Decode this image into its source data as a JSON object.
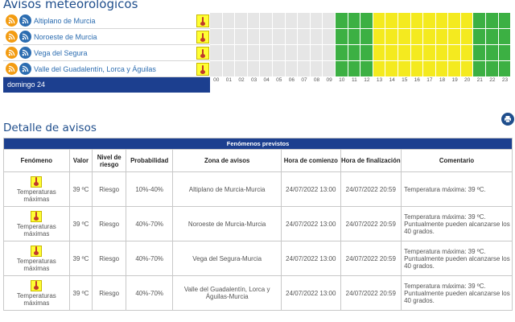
{
  "page": {
    "title": "Avisos meteorológicos"
  },
  "zones": [
    {
      "name": "Altiplano de Murcia"
    },
    {
      "name": "Noroeste de Murcia"
    },
    {
      "name": "Vega del Segura"
    },
    {
      "name": "Valle del Guadalentín, Lorca y Águilas"
    }
  ],
  "day_label": "domingo 24",
  "hours": [
    "00",
    "01",
    "02",
    "03",
    "04",
    "05",
    "06",
    "07",
    "08",
    "09",
    "10",
    "11",
    "12",
    "13",
    "14",
    "15",
    "16",
    "17",
    "18",
    "19",
    "20",
    "21",
    "22",
    "23"
  ],
  "warning_grid": [
    [
      "none",
      "none",
      "none",
      "none",
      "none",
      "none",
      "none",
      "none",
      "none",
      "none",
      "green",
      "green",
      "green",
      "yellow",
      "yellow",
      "yellow",
      "yellow",
      "yellow",
      "yellow",
      "yellow",
      "yellow",
      "green",
      "green",
      "green"
    ],
    [
      "none",
      "none",
      "none",
      "none",
      "none",
      "none",
      "none",
      "none",
      "none",
      "none",
      "green",
      "green",
      "green",
      "yellow",
      "yellow",
      "yellow",
      "yellow",
      "yellow",
      "yellow",
      "yellow",
      "yellow",
      "green",
      "green",
      "green"
    ],
    [
      "none",
      "none",
      "none",
      "none",
      "none",
      "none",
      "none",
      "none",
      "none",
      "none",
      "green",
      "green",
      "green",
      "yellow",
      "yellow",
      "yellow",
      "yellow",
      "yellow",
      "yellow",
      "yellow",
      "yellow",
      "green",
      "green",
      "green"
    ],
    [
      "none",
      "none",
      "none",
      "none",
      "none",
      "none",
      "none",
      "none",
      "none",
      "none",
      "green",
      "green",
      "green",
      "yellow",
      "yellow",
      "yellow",
      "yellow",
      "yellow",
      "yellow",
      "yellow",
      "yellow",
      "green",
      "green",
      "green"
    ]
  ],
  "colors": {
    "none": "#e6e6e6",
    "green": "#3cb043",
    "yellow": "#f4ea1f",
    "brand": "#1c3f8f"
  },
  "detail": {
    "title": "Detalle de avisos",
    "band": "Fenómenos previstos",
    "headers": {
      "fenomeno": "Fenómeno",
      "valor": "Valor",
      "nivel": "Nivel de riesgo",
      "probabilidad": "Probabilidad",
      "zona": "Zona de avisos",
      "hora_comienzo": "Hora de comienzo",
      "hora_fin": "Hora de finalización",
      "comentario": "Comentario"
    },
    "rows": [
      {
        "fenomeno": "Temperaturas máximas",
        "valor": "39 ºC",
        "nivel": "Riesgo",
        "probabilidad": "10%-40%",
        "zona": "Altiplano de Murcia-Murcia",
        "inicio": "24/07/2022 13:00",
        "fin": "24/07/2022 20:59",
        "comentario": "Temperatura máxima: 39 ºC."
      },
      {
        "fenomeno": "Temperaturas máximas",
        "valor": "39 ºC",
        "nivel": "Riesgo",
        "probabilidad": "40%-70%",
        "zona": "Noroeste de Murcia-Murcia",
        "inicio": "24/07/2022 13:00",
        "fin": "24/07/2022 20:59",
        "comentario": "Temperatura máxima: 39 ºC. Puntualmente pueden alcanzarse los 40 grados."
      },
      {
        "fenomeno": "Temperaturas máximas",
        "valor": "39 ºC",
        "nivel": "Riesgo",
        "probabilidad": "40%-70%",
        "zona": "Vega del Segura-Murcia",
        "inicio": "24/07/2022 13:00",
        "fin": "24/07/2022 20:59",
        "comentario": "Temperatura máxima: 39 ºC. Puntualmente pueden alcanzarse los 40 grados."
      },
      {
        "fenomeno": "Temperaturas máximas",
        "valor": "39 ºC",
        "nivel": "Riesgo",
        "probabilidad": "40%-70%",
        "zona": "Valle del Guadalentín, Lorca y Águilas-Murcia",
        "inicio": "24/07/2022 13:00",
        "fin": "24/07/2022 20:59",
        "comentario": "Temperatura máxima: 39 ºC. Puntualmente pueden alcanzarse los 40 grados."
      }
    ]
  }
}
